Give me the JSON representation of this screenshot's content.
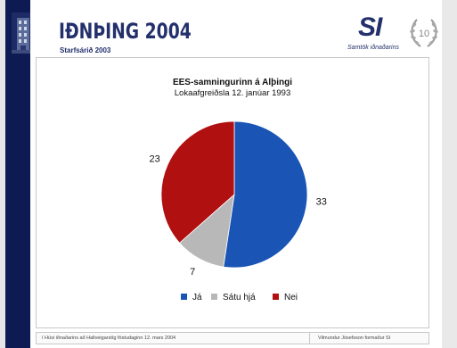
{
  "header": {
    "conference_title": "IÐNÞING 2004",
    "conference_subtitle": "Starfsárið 2003",
    "org_mark": "SI",
    "org_name": "Samtök iðnaðarins",
    "anniversary_label": "10"
  },
  "chart_data": {
    "type": "pie",
    "title": "EES-samningurinn á Alþingi",
    "subtitle": "Lokaafgreiðsla 12. janúar 1993",
    "categories": [
      "Já",
      "Sátu hjá",
      "Nei"
    ],
    "values": [
      33,
      7,
      23
    ],
    "colors": [
      "#1a55b5",
      "#b8b8b8",
      "#b01010"
    ],
    "legend_position": "bottom"
  },
  "footer": {
    "left": "í Húsi iðnaðarins að Hallveigarstíg föstudaginn 12. mars 2004",
    "right": "Vilmundur Jósefsson formaður SI"
  },
  "icons": {
    "building": "building-photo-icon",
    "laurel": "laurel-wreath-icon"
  }
}
